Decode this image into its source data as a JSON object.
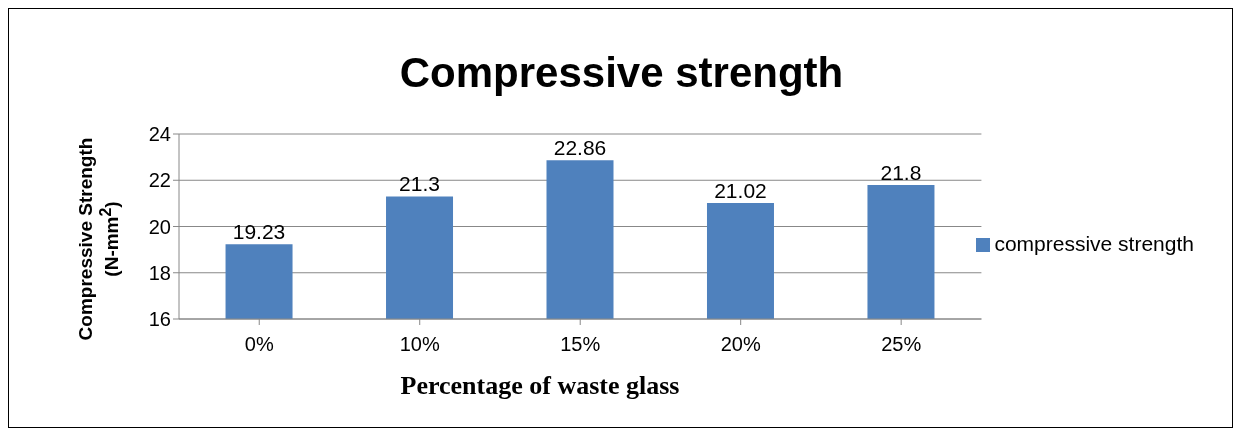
{
  "chart_data": {
    "type": "bar",
    "title": "Compressive strength",
    "xlabel": "Percentage of waste glass",
    "ylabel": "Compressive Strength (N-mm$^{2}$)",
    "categories": [
      "0%",
      "10%",
      "15%",
      "20%",
      "25%"
    ],
    "series": [
      {
        "name": "compressive strength",
        "color": "#4f81bd",
        "values": [
          19.23,
          21.3,
          22.86,
          21.02,
          21.8
        ]
      }
    ],
    "ylim": [
      16,
      24
    ],
    "yticks": [
      16,
      18,
      20,
      22,
      24
    ],
    "grid": "y",
    "legend": "right",
    "data_labels": true
  }
}
